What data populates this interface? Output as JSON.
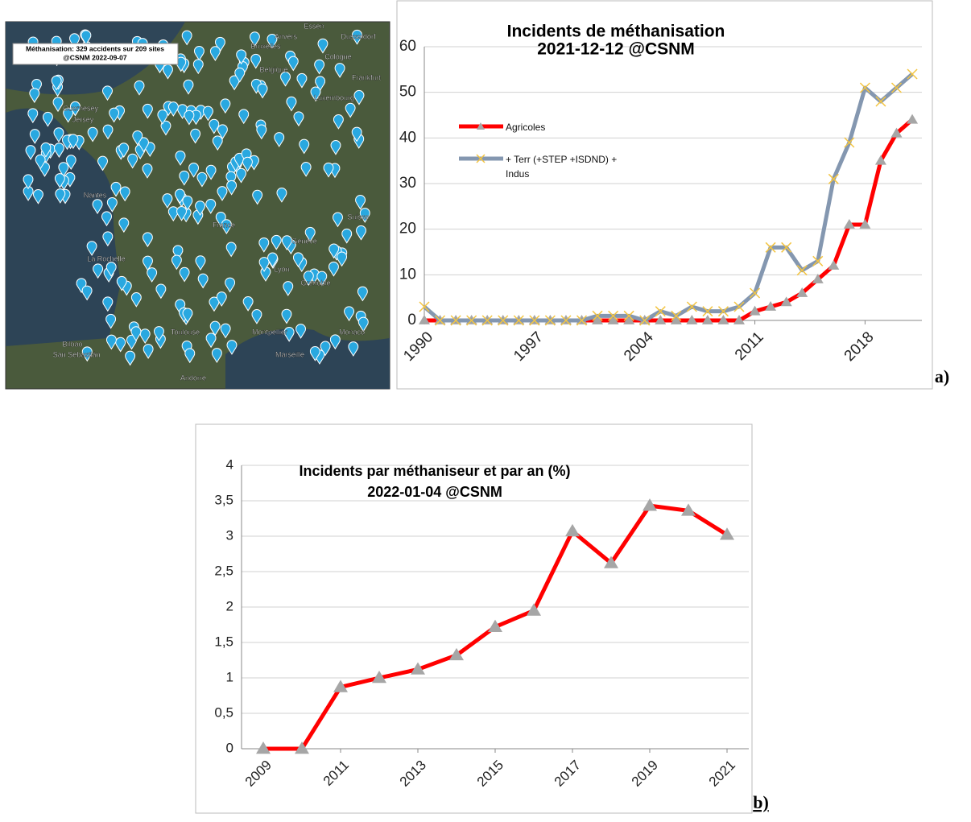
{
  "map": {
    "caption": [
      "Méthanisation: 329 accidents sur 209 sites",
      "@CSNM 2022-09-07"
    ],
    "places": [
      "Essen",
      "Dusseldorf",
      "Anvers",
      "Bruxelles",
      "Cologne",
      "Belgique",
      "Frankfurt",
      "Luxembourg",
      "Guernesey",
      "Jersey",
      "Nantes",
      "France",
      "La Rochelle",
      "Suisse",
      "Genève",
      "Lyon",
      "Grenoble",
      "Toulouse",
      "Montpellier",
      "Marseille",
      "Monaco",
      "Bilbao",
      "San Sebastián",
      "Andorre"
    ]
  },
  "chart_data": [
    {
      "type": "line",
      "title": "Incidents de méthanisation",
      "subtitle": "2021-12-12 @CSNM",
      "panel_label": "a)",
      "categories": [
        "1990",
        null,
        null,
        null,
        null,
        null,
        null,
        "1997",
        null,
        null,
        null,
        null,
        null,
        null,
        "2004",
        null,
        null,
        null,
        null,
        null,
        null,
        "2011",
        null,
        null,
        null,
        null,
        null,
        null,
        "2018",
        null,
        null,
        null
      ],
      "series": [
        {
          "name": "Agricoles",
          "color": "#ff0000",
          "marker_color": "#a6a6a6",
          "marker": "triangle",
          "values": [
            0,
            0,
            0,
            0,
            0,
            0,
            0,
            0,
            0,
            0,
            0,
            0,
            0,
            0,
            0,
            0,
            0,
            0,
            0,
            0,
            0,
            2,
            3,
            4,
            6,
            9,
            12,
            21,
            21,
            35,
            41,
            44
          ]
        },
        {
          "name": "+ Terr (+STEP +ISDND) + Indus",
          "color": "#8497b0",
          "marker_color": "#f4c542",
          "marker": "x",
          "values": [
            3,
            0,
            0,
            0,
            0,
            0,
            0,
            0,
            0,
            0,
            0,
            1,
            1,
            1,
            0,
            2,
            1,
            3,
            2,
            2,
            3,
            6,
            16,
            16,
            11,
            13,
            31,
            39,
            51,
            48,
            51,
            54
          ]
        }
      ],
      "ylim": [
        0,
        60
      ],
      "yticks": [
        0,
        10,
        20,
        30,
        40,
        50,
        60
      ],
      "grid": true,
      "legend": "left"
    },
    {
      "type": "line",
      "title": "Incidents par méthaniseur et par an (%)",
      "subtitle": "2022-01-04 @CSNM",
      "panel_label": "b)",
      "categories": [
        "2009",
        null,
        "2011",
        null,
        "2013",
        null,
        "2015",
        null,
        "2017",
        null,
        "2019",
        null,
        "2021"
      ],
      "series": [
        {
          "name": null,
          "color": "#ff0000",
          "marker_color": "#a6a6a6",
          "marker": "triangle",
          "values": [
            0,
            0,
            0.87,
            1.0,
            1.12,
            1.32,
            1.72,
            1.95,
            3.07,
            2.62,
            3.43,
            3.36,
            3.02
          ]
        }
      ],
      "ylim": [
        0,
        4
      ],
      "yticks": [
        0,
        {
          "value": 0.5,
          "label": "0,5"
        },
        1,
        {
          "value": 1.5,
          "label": "1,5"
        },
        2,
        {
          "value": 2.5,
          "label": "2,5"
        },
        3,
        {
          "value": 3.5,
          "label": "3,5"
        },
        4
      ],
      "grid": true
    }
  ]
}
